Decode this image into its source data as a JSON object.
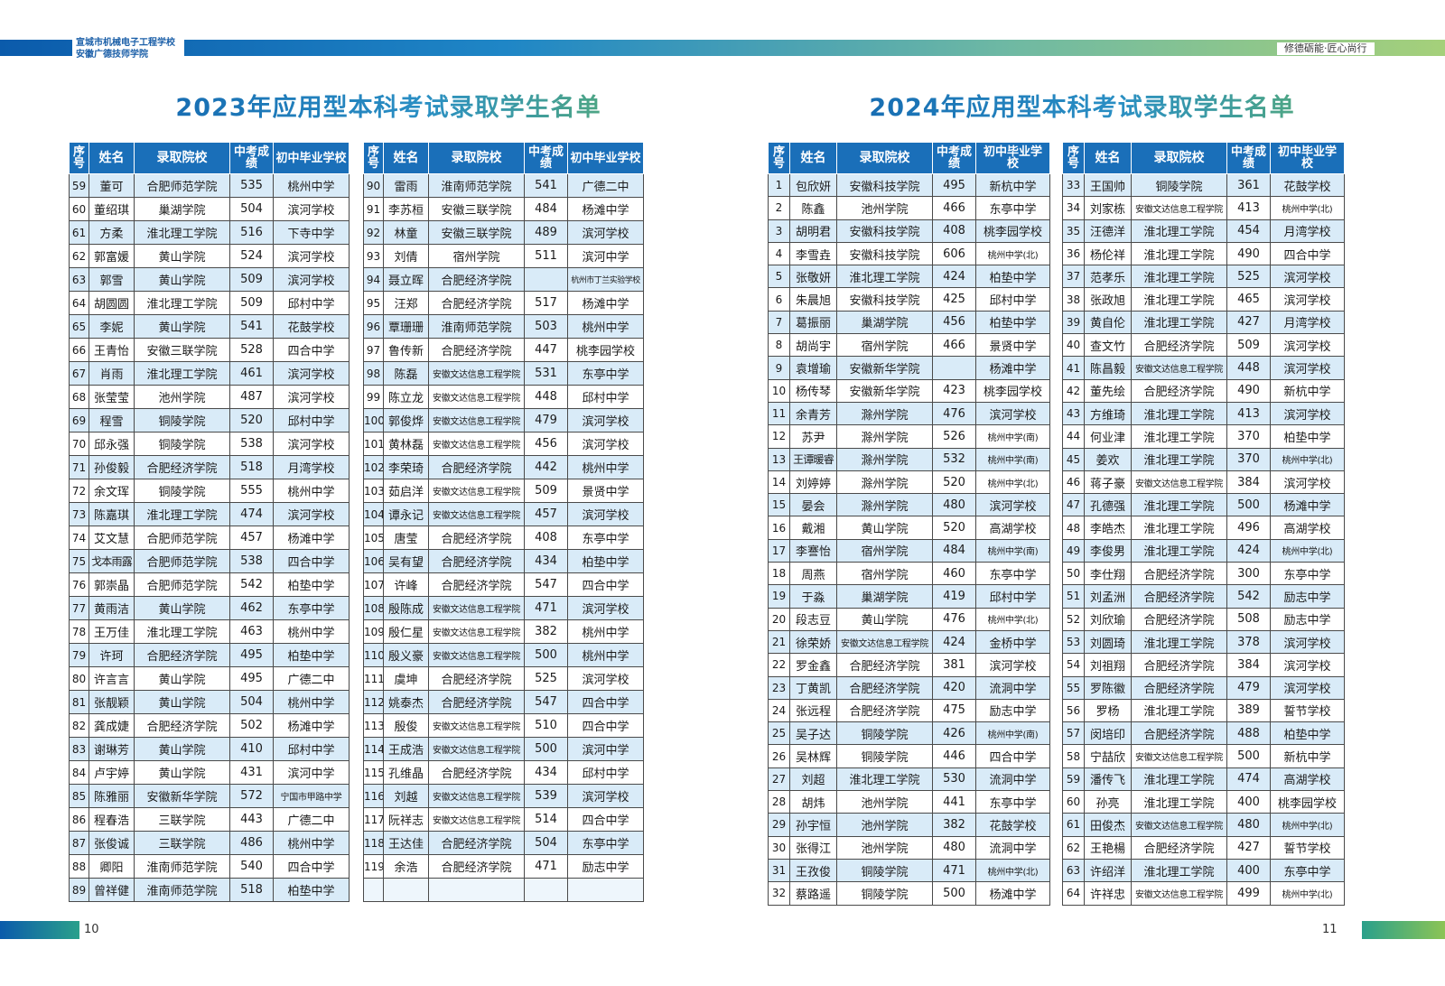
{
  "header": {
    "school_line1": "宣城市机械电子工程学校",
    "school_line2": "安徽广德技师学院",
    "motto": "修德砺能·匠心尚行"
  },
  "left_page": {
    "title": "2023年应用型本科考试录取学生名单",
    "page_number": "10"
  },
  "right_page": {
    "title": "2024年应用型本科考试录取学生名单",
    "page_number": "11"
  },
  "columns": {
    "seq": "序号",
    "name": "姓名",
    "college": "录取院校",
    "score": "中考成绩",
    "middle_school": "初中毕业学校"
  },
  "tables": [
    {
      "rows": [
        [
          "59",
          "董可",
          "合肥师范学院",
          "535",
          "桃州中学"
        ],
        [
          "60",
          "董绍琪",
          "巢湖学院",
          "504",
          "滨河学校"
        ],
        [
          "61",
          "方柔",
          "淮北理工学院",
          "516",
          "下寺中学"
        ],
        [
          "62",
          "郭富媛",
          "黄山学院",
          "524",
          "滨河学校"
        ],
        [
          "63",
          "郭雪",
          "黄山学院",
          "509",
          "滨河学校"
        ],
        [
          "64",
          "胡圆圆",
          "淮北理工学院",
          "509",
          "邱村中学"
        ],
        [
          "65",
          "李妮",
          "黄山学院",
          "541",
          "花鼓学校"
        ],
        [
          "66",
          "王青怡",
          "安徽三联学院",
          "528",
          "四合中学"
        ],
        [
          "67",
          "肖雨",
          "淮北理工学院",
          "461",
          "滨河学校"
        ],
        [
          "68",
          "张莹莹",
          "池州学院",
          "487",
          "滨河学校"
        ],
        [
          "69",
          "程雪",
          "铜陵学院",
          "520",
          "邱村中学"
        ],
        [
          "70",
          "邱永强",
          "铜陵学院",
          "538",
          "滨河学校"
        ],
        [
          "71",
          "孙俊毅",
          "合肥经济学院",
          "518",
          "月湾学校"
        ],
        [
          "72",
          "余文珲",
          "铜陵学院",
          "555",
          "桃州中学"
        ],
        [
          "73",
          "陈嘉琪",
          "淮北理工学院",
          "474",
          "滨河学校"
        ],
        [
          "74",
          "艾文慧",
          "合肥师范学院",
          "457",
          "杨滩中学"
        ],
        [
          "75",
          "戈本雨露",
          "合肥师范学院",
          "538",
          "四合中学"
        ],
        [
          "76",
          "郭崇晶",
          "合肥师范学院",
          "542",
          "柏垫中学"
        ],
        [
          "77",
          "黄雨洁",
          "黄山学院",
          "462",
          "东亭中学"
        ],
        [
          "78",
          "王万佳",
          "淮北理工学院",
          "463",
          "桃州中学"
        ],
        [
          "79",
          "许珂",
          "合肥经济学院",
          "495",
          "柏垫中学"
        ],
        [
          "80",
          "许言言",
          "黄山学院",
          "495",
          "广德二中"
        ],
        [
          "81",
          "张靓颖",
          "黄山学院",
          "504",
          "桃州中学"
        ],
        [
          "82",
          "龚成婕",
          "合肥经济学院",
          "502",
          "杨滩中学"
        ],
        [
          "83",
          "谢琳芳",
          "黄山学院",
          "410",
          "邱村中学"
        ],
        [
          "84",
          "卢宇婷",
          "黄山学院",
          "431",
          "滨河中学"
        ],
        [
          "85",
          "陈雅丽",
          "安徽新华学院",
          "572",
          "宁国市甲路中学"
        ],
        [
          "86",
          "程春浩",
          "三联学院",
          "443",
          "广德二中"
        ],
        [
          "87",
          "张俊诚",
          "三联学院",
          "486",
          "桃州中学"
        ],
        [
          "88",
          "卿阳",
          "淮南师范学院",
          "540",
          "四合中学"
        ],
        [
          "89",
          "曾祥健",
          "淮南师范学院",
          "518",
          "柏垫中学"
        ]
      ]
    },
    {
      "rows": [
        [
          "90",
          "雷雨",
          "淮南师范学院",
          "541",
          "广德二中"
        ],
        [
          "91",
          "李苏桓",
          "安徽三联学院",
          "484",
          "杨滩中学"
        ],
        [
          "92",
          "林童",
          "安徽三联学院",
          "489",
          "滨河学校"
        ],
        [
          "93",
          "刘倩",
          "宿州学院",
          "511",
          "滨河中学"
        ],
        [
          "94",
          "聂立晖",
          "合肥经济学院",
          "",
          "杭州市丁兰实验学校"
        ],
        [
          "95",
          "汪郑",
          "合肥经济学院",
          "517",
          "杨滩中学"
        ],
        [
          "96",
          "覃珊珊",
          "淮南师范学院",
          "503",
          "桃州中学"
        ],
        [
          "97",
          "鲁传新",
          "合肥经济学院",
          "447",
          "桃李园学校"
        ],
        [
          "98",
          "陈磊",
          "安徽文达信息工程学院",
          "531",
          "东亭中学"
        ],
        [
          "99",
          "陈立龙",
          "安徽文达信息工程学院",
          "448",
          "邱村中学"
        ],
        [
          "100",
          "郭俊烨",
          "安徽文达信息工程学院",
          "479",
          "滨河学校"
        ],
        [
          "101",
          "黄林磊",
          "安徽文达信息工程学院",
          "456",
          "滨河学校"
        ],
        [
          "102",
          "李荣琦",
          "合肥经济学院",
          "442",
          "桃州中学"
        ],
        [
          "103",
          "茹启洋",
          "安徽文达信息工程学院",
          "509",
          "景贤中学"
        ],
        [
          "104",
          "谭永记",
          "安徽文达信息工程学院",
          "457",
          "滨河学校"
        ],
        [
          "105",
          "唐莹",
          "合肥经济学院",
          "408",
          "东亭中学"
        ],
        [
          "106",
          "吴有望",
          "合肥经济学院",
          "434",
          "柏垫中学"
        ],
        [
          "107",
          "许峰",
          "合肥经济学院",
          "547",
          "四合中学"
        ],
        [
          "108",
          "殷陈成",
          "安徽文达信息工程学院",
          "471",
          "滨河学校"
        ],
        [
          "109",
          "殷仁星",
          "安徽文达信息工程学院",
          "382",
          "桃州中学"
        ],
        [
          "110",
          "殷义豪",
          "安徽文达信息工程学院",
          "500",
          "桃州中学"
        ],
        [
          "111",
          "虞坤",
          "合肥经济学院",
          "525",
          "滨河学校"
        ],
        [
          "112",
          "姚泰杰",
          "合肥经济学院",
          "547",
          "四合中学"
        ],
        [
          "113",
          "殷俊",
          "安徽文达信息工程学院",
          "510",
          "四合中学"
        ],
        [
          "114",
          "王成浩",
          "安徽文达信息工程学院",
          "500",
          "滨河中学"
        ],
        [
          "115",
          "孔维晶",
          "合肥经济学院",
          "434",
          "邱村中学"
        ],
        [
          "116",
          "刘越",
          "安徽文达信息工程学院",
          "539",
          "滨河学校"
        ],
        [
          "117",
          "阮祥志",
          "安徽文达信息工程学院",
          "514",
          "四合中学"
        ],
        [
          "118",
          "王达佳",
          "合肥经济学院",
          "504",
          "东亭中学"
        ],
        [
          "119",
          "余浩",
          "合肥经济学院",
          "471",
          "励志中学"
        ],
        [
          "",
          "",
          "",
          "",
          ""
        ]
      ]
    },
    {
      "rows": [
        [
          "1",
          "包欣妍",
          "安徽科技学院",
          "495",
          "新杭中学"
        ],
        [
          "2",
          "陈鑫",
          "池州学院",
          "466",
          "东亭中学"
        ],
        [
          "3",
          "胡明君",
          "安徽科技学院",
          "408",
          "桃李园学校"
        ],
        [
          "4",
          "李雪垚",
          "安徽科技学院",
          "606",
          "桃州中学(北)"
        ],
        [
          "5",
          "张敬妍",
          "淮北理工学院",
          "424",
          "柏垫中学"
        ],
        [
          "6",
          "朱晨旭",
          "安徽科技学院",
          "425",
          "邱村中学"
        ],
        [
          "7",
          "葛振丽",
          "巢湖学院",
          "456",
          "柏垫中学"
        ],
        [
          "8",
          "胡尚宇",
          "宿州学院",
          "466",
          "景贤中学"
        ],
        [
          "9",
          "袁增瑜",
          "安徽新华学院",
          "",
          "杨滩中学"
        ],
        [
          "10",
          "杨传琴",
          "安徽新华学院",
          "423",
          "桃李园学校"
        ],
        [
          "11",
          "余青芳",
          "滁州学院",
          "476",
          "滨河学校"
        ],
        [
          "12",
          "苏尹",
          "滁州学院",
          "526",
          "桃州中学(南)"
        ],
        [
          "13",
          "王谭暖睿",
          "滁州学院",
          "532",
          "桃州中学(南)"
        ],
        [
          "14",
          "刘婷婷",
          "滁州学院",
          "520",
          "桃州中学(北)"
        ],
        [
          "15",
          "晏会",
          "滁州学院",
          "480",
          "滨河学校"
        ],
        [
          "16",
          "戴湘",
          "黄山学院",
          "520",
          "高湖学校"
        ],
        [
          "17",
          "李謇怡",
          "宿州学院",
          "484",
          "桃州中学(南)"
        ],
        [
          "18",
          "周燕",
          "宿州学院",
          "460",
          "东亭中学"
        ],
        [
          "19",
          "于淼",
          "巢湖学院",
          "419",
          "邱村中学"
        ],
        [
          "20",
          "段志豆",
          "黄山学院",
          "476",
          "桃州中学(北)"
        ],
        [
          "21",
          "徐荣娇",
          "安徽文达信息工程学院",
          "424",
          "金桥中学"
        ],
        [
          "22",
          "罗金鑫",
          "合肥经济学院",
          "381",
          "滨河学校"
        ],
        [
          "23",
          "丁黄凯",
          "合肥经济学院",
          "420",
          "流洞中学"
        ],
        [
          "24",
          "张远程",
          "合肥经济学院",
          "475",
          "励志中学"
        ],
        [
          "25",
          "吴子达",
          "铜陵学院",
          "426",
          "桃州中学(南)"
        ],
        [
          "26",
          "吴林辉",
          "铜陵学院",
          "446",
          "四合中学"
        ],
        [
          "27",
          "刘超",
          "淮北理工学院",
          "530",
          "流洞中学"
        ],
        [
          "28",
          "胡炜",
          "池州学院",
          "441",
          "东亭中学"
        ],
        [
          "29",
          "孙宇恒",
          "池州学院",
          "382",
          "花鼓学校"
        ],
        [
          "30",
          "张得江",
          "池州学院",
          "480",
          "流洞中学"
        ],
        [
          "31",
          "王孜俊",
          "铜陵学院",
          "471",
          "桃州中学(北)"
        ],
        [
          "32",
          "蔡路遥",
          "铜陵学院",
          "500",
          "杨滩中学"
        ]
      ]
    },
    {
      "rows": [
        [
          "33",
          "王国帅",
          "铜陵学院",
          "361",
          "花鼓学校"
        ],
        [
          "34",
          "刘家栋",
          "安徽文达信息工程学院",
          "413",
          "桃州中学(北)"
        ],
        [
          "35",
          "汪德洋",
          "淮北理工学院",
          "454",
          "月湾学校"
        ],
        [
          "36",
          "杨伦祥",
          "淮北理工学院",
          "490",
          "四合中学"
        ],
        [
          "37",
          "范孝乐",
          "淮北理工学院",
          "525",
          "滨河学校"
        ],
        [
          "38",
          "张政旭",
          "淮北理工学院",
          "465",
          "滨河学校"
        ],
        [
          "39",
          "黄自伦",
          "淮北理工学院",
          "427",
          "月湾学校"
        ],
        [
          "40",
          "查文竹",
          "合肥经济学院",
          "509",
          "滨河学校"
        ],
        [
          "41",
          "陈昌毅",
          "安徽文达信息工程学院",
          "448",
          "滨河学校"
        ],
        [
          "42",
          "董先绘",
          "合肥经济学院",
          "490",
          "新杭中学"
        ],
        [
          "43",
          "方维琦",
          "淮北理工学院",
          "413",
          "滨河学校"
        ],
        [
          "44",
          "何业津",
          "淮北理工学院",
          "370",
          "柏垫中学"
        ],
        [
          "45",
          "姜欢",
          "淮北理工学院",
          "370",
          "桃州中学(北)"
        ],
        [
          "46",
          "蒋子豪",
          "安徽文达信息工程学院",
          "384",
          "滨河学校"
        ],
        [
          "47",
          "孔德强",
          "淮北理工学院",
          "500",
          "杨滩中学"
        ],
        [
          "48",
          "李皓杰",
          "淮北理工学院",
          "496",
          "高湖学校"
        ],
        [
          "49",
          "李俊男",
          "淮北理工学院",
          "424",
          "桃州中学(北)"
        ],
        [
          "50",
          "李仕翔",
          "合肥经济学院",
          "300",
          "东亭中学"
        ],
        [
          "51",
          "刘孟洲",
          "合肥经济学院",
          "542",
          "励志中学"
        ],
        [
          "52",
          "刘欣瑜",
          "合肥经济学院",
          "508",
          "励志中学"
        ],
        [
          "53",
          "刘圆琦",
          "淮北理工学院",
          "378",
          "滨河学校"
        ],
        [
          "54",
          "刘祖翔",
          "合肥经济学院",
          "384",
          "滨河学校"
        ],
        [
          "55",
          "罗陈徽",
          "合肥经济学院",
          "479",
          "滨河学校"
        ],
        [
          "56",
          "罗杨",
          "淮北理工学院",
          "389",
          "誓节学校"
        ],
        [
          "57",
          "闵培印",
          "合肥经济学院",
          "488",
          "柏垫中学"
        ],
        [
          "58",
          "宁喆欣",
          "安徽文达信息工程学院",
          "500",
          "新杭中学"
        ],
        [
          "59",
          "潘传飞",
          "淮北理工学院",
          "474",
          "高湖学校"
        ],
        [
          "60",
          "孙亮",
          "淮北理工学院",
          "400",
          "桃李园学校"
        ],
        [
          "61",
          "田俊杰",
          "安徽文达信息工程学院",
          "480",
          "桃州中学(北)"
        ],
        [
          "62",
          "王艳楊",
          "合肥经济学院",
          "427",
          "誓节学校"
        ],
        [
          "63",
          "许绍洋",
          "淮北理工学院",
          "400",
          "东亭中学"
        ],
        [
          "64",
          "许祥忠",
          "安徽文达信息工程学院",
          "499",
          "桃州中学(北)"
        ]
      ]
    }
  ]
}
